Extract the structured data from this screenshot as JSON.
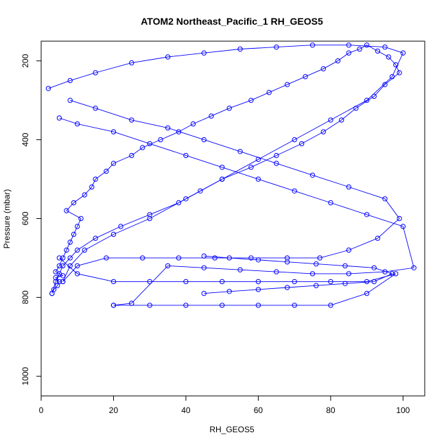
{
  "chart_data": {
    "type": "line",
    "title": "ATOM2 Northeast_Pacific_1 RH_GEOS5",
    "xlabel": "RH_GEOS5",
    "ylabel": "Pressure (mbar)",
    "xlim": [
      0,
      106
    ],
    "ylim": [
      1050,
      150
    ],
    "y_axis_reversed": true,
    "grid": false,
    "marker": "open-circle",
    "line_color": "#0000ff",
    "x_ticks": [
      0,
      20,
      40,
      60,
      80,
      100
    ],
    "y_ticks": [
      200,
      400,
      600,
      800,
      1000
    ],
    "series": [
      {
        "x": [
          3,
          3.5,
          4.5,
          5,
          4,
          6,
          4,
          5,
          6,
          7,
          8,
          9,
          10,
          11,
          7,
          9,
          12,
          14,
          15,
          18,
          20,
          25,
          28,
          33,
          38,
          42,
          47,
          52,
          58,
          63,
          68,
          73,
          78,
          82,
          85,
          88,
          90,
          93,
          96,
          98,
          99,
          95,
          92,
          87,
          83,
          78,
          72,
          65,
          58,
          50,
          44,
          38,
          30,
          22,
          15,
          10,
          8,
          6,
          5,
          4,
          3
        ],
        "y": [
          790,
          780,
          770,
          760,
          750,
          745,
          735,
          720,
          700,
          680,
          660,
          640,
          620,
          600,
          580,
          560,
          540,
          520,
          500,
          480,
          460,
          440,
          420,
          400,
          380,
          360,
          340,
          320,
          300,
          280,
          260,
          240,
          220,
          200,
          180,
          170,
          160,
          175,
          190,
          210,
          230,
          260,
          290,
          320,
          350,
          380,
          410,
          440,
          470,
          500,
          530,
          560,
          590,
          620,
          650,
          680,
          700,
          720,
          740,
          760,
          790
        ]
      },
      {
        "x": [
          2,
          8,
          15,
          25,
          35,
          45,
          55,
          65,
          75,
          85,
          95,
          100,
          97,
          90,
          80,
          70,
          60,
          50,
          40,
          30,
          20,
          12,
          8,
          6
        ],
        "y": [
          270,
          250,
          230,
          205,
          190,
          180,
          170,
          165,
          160,
          160,
          165,
          180,
          240,
          300,
          350,
          400,
          450,
          500,
          550,
          600,
          640,
          680,
          720,
          760
        ]
      },
      {
        "x": [
          5,
          10,
          20,
          30,
          40,
          50,
          60,
          70,
          80,
          90,
          100,
          103,
          95,
          85,
          75,
          65,
          55,
          45,
          35,
          25,
          20
        ],
        "y": [
          345,
          360,
          380,
          410,
          440,
          470,
          500,
          530,
          560,
          590,
          620,
          725,
          735,
          740,
          740,
          735,
          730,
          725,
          720,
          815,
          820
        ]
      },
      {
        "x": [
          20,
          30,
          40,
          50,
          60,
          70,
          80,
          90,
          98,
          90,
          80,
          70,
          60,
          50,
          40,
          30,
          20,
          10,
          5
        ],
        "y": [
          820,
          820,
          820,
          820,
          820,
          820,
          820,
          790,
          740,
          760,
          760,
          760,
          760,
          760,
          760,
          760,
          760,
          740,
          700
        ]
      },
      {
        "x": [
          8,
          15,
          25,
          35,
          45,
          55,
          65,
          75,
          85,
          95,
          99,
          93,
          85,
          77,
          68,
          58,
          48,
          38,
          28,
          18,
          10,
          6
        ],
        "y": [
          300,
          320,
          350,
          370,
          400,
          430,
          460,
          490,
          520,
          550,
          600,
          650,
          680,
          700,
          700,
          700,
          700,
          700,
          700,
          700,
          720,
          760
        ]
      },
      {
        "x": [
          45,
          52,
          60,
          68,
          76,
          84,
          92,
          97,
          92,
          84,
          76,
          68,
          60,
          52,
          45
        ],
        "y": [
          790,
          785,
          780,
          775,
          770,
          765,
          760,
          740,
          725,
          720,
          715,
          710,
          705,
          700,
          695
        ]
      }
    ]
  }
}
